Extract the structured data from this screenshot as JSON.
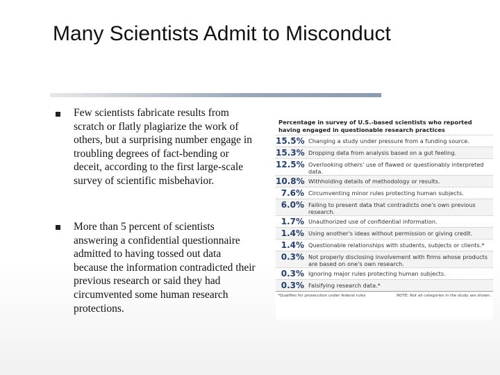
{
  "title": "Many Scientists Admit to Misconduct",
  "bullets": [
    "Few scientists fabricate results from scratch or flatly plagiarize the work of others, but a surprising number engage in troubling degrees of fact-bending or deceit, according to the first large-scale survey of scientific misbehavior.",
    "More than 5 percent of scientists answering a confidential questionnaire admitted to having tossed out data because the information contradicted their previous research or said they had circumvented some human research protections."
  ],
  "table": {
    "header": "Percentage in survey of U.S.-based scientists who reported having engaged in questionable research practices",
    "rows": [
      [
        "15.5%",
        "Changing a study under pressure from a funding source."
      ],
      [
        "15.3%",
        "Dropping data from analysis based on a gut feeling."
      ],
      [
        "12.5%",
        "Overlooking others' use of flawed or questionably interpreted data."
      ],
      [
        "10.8%",
        "Withholding details of methodology or results."
      ],
      [
        "7.6%",
        "Circumventing minor rules protecting human subjects."
      ],
      [
        "6.0%",
        "Failing to present data that contradicts one's own previous research."
      ],
      [
        "1.7%",
        "Unauthorized use of confidential information."
      ],
      [
        "1.4%",
        "Using another's ideas without permission or giving credit."
      ],
      [
        "1.4%",
        "Questionable relationships with students, subjects or clients.*"
      ],
      [
        "0.3%",
        "Not properly disclosing involvement with firms whose products are based on one's own research."
      ],
      [
        "0.3%",
        "Ignoring major rules protecting human subjects."
      ],
      [
        "0.3%",
        "Falsifying research data.*"
      ]
    ],
    "footnote": "*Qualifies for prosecution under federal rules",
    "note": "NOTE: Not all categories in the study are shown."
  }
}
